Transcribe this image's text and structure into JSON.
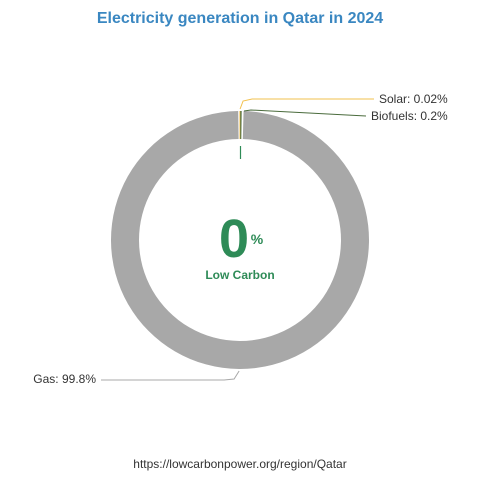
{
  "title": "Electricity generation in Qatar in 2024",
  "center": {
    "value": "0",
    "unit": "%",
    "label": "Low Carbon"
  },
  "source_url": "https://lowcarbonpower.org/region/Qatar",
  "colors": {
    "title": "#3a87c1",
    "low_carbon": "#2e8b57",
    "gas": "#a8a8a8",
    "solar": "#f2c14e",
    "biofuels": "#4a6b3c",
    "label_text": "#333333"
  },
  "chart_data": {
    "type": "pie",
    "title": "Electricity generation in Qatar in 2024",
    "slices": [
      {
        "name": "Solar",
        "value": 0.02,
        "label": "Solar: 0.02%",
        "color": "#f2c14e"
      },
      {
        "name": "Biofuels",
        "value": 0.2,
        "label": "Biofuels: 0.2%",
        "color": "#4a6b3c"
      },
      {
        "name": "Gas",
        "value": 99.8,
        "label": "Gas: 99.8%",
        "color": "#a8a8a8"
      }
    ]
  }
}
